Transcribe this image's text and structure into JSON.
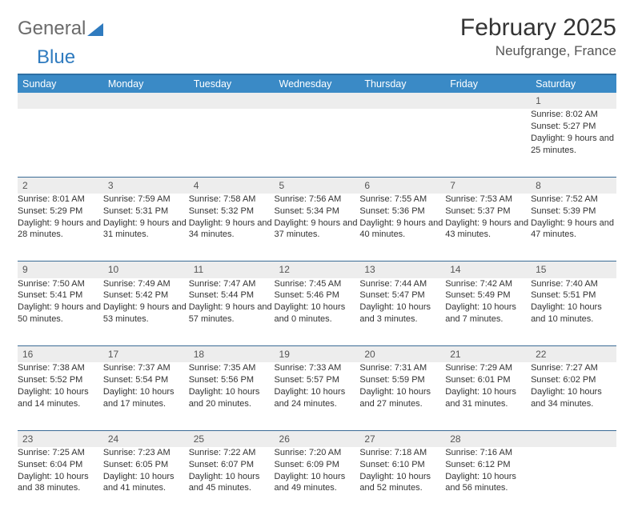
{
  "brand": {
    "part1": "General",
    "part2": "Blue"
  },
  "title": "February 2025",
  "location": "Neufgrange, France",
  "colors": {
    "header_bg": "#3a8ac6",
    "header_border": "#2e6fa3",
    "row_divider": "#3a6b95",
    "daynum_bg": "#ededed",
    "text": "#333333",
    "logo_gray": "#6b6b6b",
    "logo_blue": "#2f7bbf",
    "background": "#ffffff"
  },
  "weekdays": [
    "Sunday",
    "Monday",
    "Tuesday",
    "Wednesday",
    "Thursday",
    "Friday",
    "Saturday"
  ],
  "weeks": [
    [
      null,
      null,
      null,
      null,
      null,
      null,
      {
        "n": "1",
        "sr": "Sunrise: 8:02 AM",
        "ss": "Sunset: 5:27 PM",
        "dl": "Daylight: 9 hours and 25 minutes."
      }
    ],
    [
      {
        "n": "2",
        "sr": "Sunrise: 8:01 AM",
        "ss": "Sunset: 5:29 PM",
        "dl": "Daylight: 9 hours and 28 minutes."
      },
      {
        "n": "3",
        "sr": "Sunrise: 7:59 AM",
        "ss": "Sunset: 5:31 PM",
        "dl": "Daylight: 9 hours and 31 minutes."
      },
      {
        "n": "4",
        "sr": "Sunrise: 7:58 AM",
        "ss": "Sunset: 5:32 PM",
        "dl": "Daylight: 9 hours and 34 minutes."
      },
      {
        "n": "5",
        "sr": "Sunrise: 7:56 AM",
        "ss": "Sunset: 5:34 PM",
        "dl": "Daylight: 9 hours and 37 minutes."
      },
      {
        "n": "6",
        "sr": "Sunrise: 7:55 AM",
        "ss": "Sunset: 5:36 PM",
        "dl": "Daylight: 9 hours and 40 minutes."
      },
      {
        "n": "7",
        "sr": "Sunrise: 7:53 AM",
        "ss": "Sunset: 5:37 PM",
        "dl": "Daylight: 9 hours and 43 minutes."
      },
      {
        "n": "8",
        "sr": "Sunrise: 7:52 AM",
        "ss": "Sunset: 5:39 PM",
        "dl": "Daylight: 9 hours and 47 minutes."
      }
    ],
    [
      {
        "n": "9",
        "sr": "Sunrise: 7:50 AM",
        "ss": "Sunset: 5:41 PM",
        "dl": "Daylight: 9 hours and 50 minutes."
      },
      {
        "n": "10",
        "sr": "Sunrise: 7:49 AM",
        "ss": "Sunset: 5:42 PM",
        "dl": "Daylight: 9 hours and 53 minutes."
      },
      {
        "n": "11",
        "sr": "Sunrise: 7:47 AM",
        "ss": "Sunset: 5:44 PM",
        "dl": "Daylight: 9 hours and 57 minutes."
      },
      {
        "n": "12",
        "sr": "Sunrise: 7:45 AM",
        "ss": "Sunset: 5:46 PM",
        "dl": "Daylight: 10 hours and 0 minutes."
      },
      {
        "n": "13",
        "sr": "Sunrise: 7:44 AM",
        "ss": "Sunset: 5:47 PM",
        "dl": "Daylight: 10 hours and 3 minutes."
      },
      {
        "n": "14",
        "sr": "Sunrise: 7:42 AM",
        "ss": "Sunset: 5:49 PM",
        "dl": "Daylight: 10 hours and 7 minutes."
      },
      {
        "n": "15",
        "sr": "Sunrise: 7:40 AM",
        "ss": "Sunset: 5:51 PM",
        "dl": "Daylight: 10 hours and 10 minutes."
      }
    ],
    [
      {
        "n": "16",
        "sr": "Sunrise: 7:38 AM",
        "ss": "Sunset: 5:52 PM",
        "dl": "Daylight: 10 hours and 14 minutes."
      },
      {
        "n": "17",
        "sr": "Sunrise: 7:37 AM",
        "ss": "Sunset: 5:54 PM",
        "dl": "Daylight: 10 hours and 17 minutes."
      },
      {
        "n": "18",
        "sr": "Sunrise: 7:35 AM",
        "ss": "Sunset: 5:56 PM",
        "dl": "Daylight: 10 hours and 20 minutes."
      },
      {
        "n": "19",
        "sr": "Sunrise: 7:33 AM",
        "ss": "Sunset: 5:57 PM",
        "dl": "Daylight: 10 hours and 24 minutes."
      },
      {
        "n": "20",
        "sr": "Sunrise: 7:31 AM",
        "ss": "Sunset: 5:59 PM",
        "dl": "Daylight: 10 hours and 27 minutes."
      },
      {
        "n": "21",
        "sr": "Sunrise: 7:29 AM",
        "ss": "Sunset: 6:01 PM",
        "dl": "Daylight: 10 hours and 31 minutes."
      },
      {
        "n": "22",
        "sr": "Sunrise: 7:27 AM",
        "ss": "Sunset: 6:02 PM",
        "dl": "Daylight: 10 hours and 34 minutes."
      }
    ],
    [
      {
        "n": "23",
        "sr": "Sunrise: 7:25 AM",
        "ss": "Sunset: 6:04 PM",
        "dl": "Daylight: 10 hours and 38 minutes."
      },
      {
        "n": "24",
        "sr": "Sunrise: 7:23 AM",
        "ss": "Sunset: 6:05 PM",
        "dl": "Daylight: 10 hours and 41 minutes."
      },
      {
        "n": "25",
        "sr": "Sunrise: 7:22 AM",
        "ss": "Sunset: 6:07 PM",
        "dl": "Daylight: 10 hours and 45 minutes."
      },
      {
        "n": "26",
        "sr": "Sunrise: 7:20 AM",
        "ss": "Sunset: 6:09 PM",
        "dl": "Daylight: 10 hours and 49 minutes."
      },
      {
        "n": "27",
        "sr": "Sunrise: 7:18 AM",
        "ss": "Sunset: 6:10 PM",
        "dl": "Daylight: 10 hours and 52 minutes."
      },
      {
        "n": "28",
        "sr": "Sunrise: 7:16 AM",
        "ss": "Sunset: 6:12 PM",
        "dl": "Daylight: 10 hours and 56 minutes."
      },
      null
    ]
  ]
}
